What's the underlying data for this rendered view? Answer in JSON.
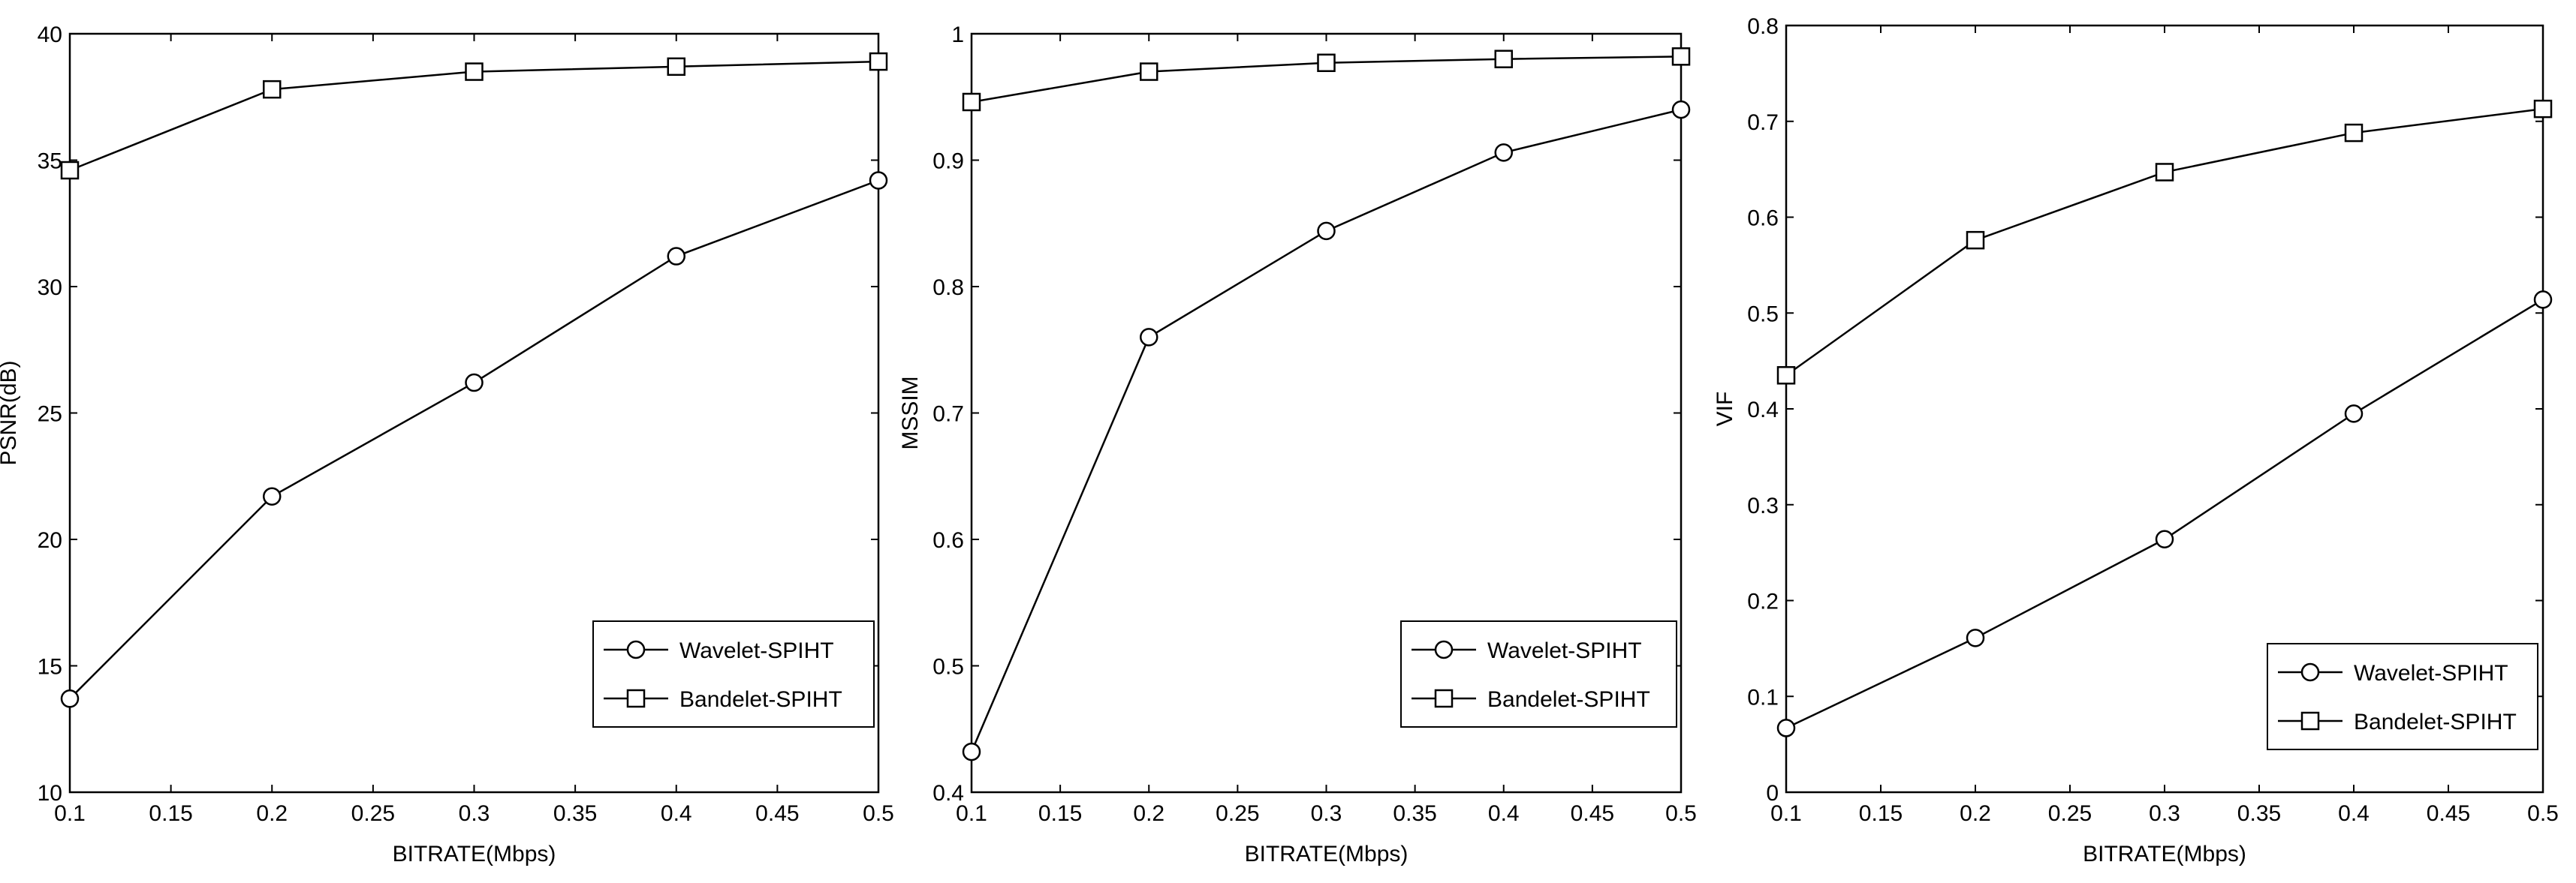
{
  "chart_data": [
    {
      "type": "line",
      "xlabel": "BITRATE(Mbps)",
      "ylabel": "PSNR(dB)",
      "xlim": [
        0.1,
        0.5
      ],
      "ylim": [
        10,
        40
      ],
      "xticks": [
        "0.1",
        "0.15",
        "0.2",
        "0.25",
        "0.3",
        "0.35",
        "0.4",
        "0.45",
        "0.5"
      ],
      "yticks": [
        "10",
        "15",
        "20",
        "25",
        "30",
        "35",
        "40"
      ],
      "grid": true,
      "legend_position": "bottom-right",
      "series": [
        {
          "name": "Wavelet-SPIHT",
          "marker": "circle",
          "x": [
            0.1,
            0.2,
            0.3,
            0.4,
            0.5
          ],
          "y": [
            13.7,
            21.7,
            26.2,
            31.2,
            34.2
          ]
        },
        {
          "name": "Bandelet-SPIHT",
          "marker": "square",
          "x": [
            0.1,
            0.2,
            0.3,
            0.4,
            0.5
          ],
          "y": [
            34.6,
            37.8,
            38.5,
            38.7,
            38.9
          ]
        }
      ]
    },
    {
      "type": "line",
      "xlabel": "BITRATE(Mbps)",
      "ylabel": "MSSIM",
      "xlim": [
        0.1,
        0.5
      ],
      "ylim": [
        0.4,
        1
      ],
      "xticks": [
        "0.1",
        "0.15",
        "0.2",
        "0.25",
        "0.3",
        "0.35",
        "0.4",
        "0.45",
        "0.5"
      ],
      "yticks": [
        "0.4",
        "0.5",
        "0.6",
        "0.7",
        "0.8",
        "0.9",
        "1"
      ],
      "grid": true,
      "legend_position": "bottom-right",
      "series": [
        {
          "name": "Wavelet-SPIHT",
          "marker": "circle",
          "x": [
            0.1,
            0.2,
            0.3,
            0.4,
            0.5
          ],
          "y": [
            0.432,
            0.76,
            0.844,
            0.906,
            0.94
          ]
        },
        {
          "name": "Bandelet-SPIHT",
          "marker": "square",
          "x": [
            0.1,
            0.2,
            0.3,
            0.4,
            0.5
          ],
          "y": [
            0.946,
            0.97,
            0.977,
            0.98,
            0.982
          ]
        }
      ]
    },
    {
      "type": "line",
      "xlabel": "BITRATE(Mbps)",
      "ylabel": "VIF",
      "xlim": [
        0.1,
        0.5
      ],
      "ylim": [
        0,
        0.8
      ],
      "xticks": [
        "0.1",
        "0.15",
        "0.2",
        "0.25",
        "0.3",
        "0.35",
        "0.4",
        "0.45",
        "0.5"
      ],
      "yticks": [
        "0",
        "0.1",
        "0.2",
        "0.3",
        "0.4",
        "0.5",
        "0.6",
        "0.7",
        "0.8"
      ],
      "grid": true,
      "legend_position": "bottom-right",
      "series": [
        {
          "name": "Wavelet-SPIHT",
          "marker": "circle",
          "x": [
            0.1,
            0.2,
            0.3,
            0.4,
            0.5
          ],
          "y": [
            0.067,
            0.161,
            0.264,
            0.395,
            0.514
          ]
        },
        {
          "name": "Bandelet-SPIHT",
          "marker": "square",
          "x": [
            0.1,
            0.2,
            0.3,
            0.4,
            0.5
          ],
          "y": [
            0.435,
            0.576,
            0.647,
            0.688,
            0.713
          ]
        }
      ]
    }
  ]
}
